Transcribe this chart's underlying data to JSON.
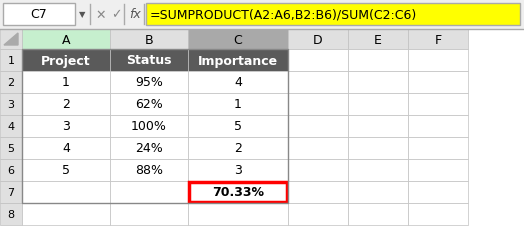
{
  "cell_ref": "C7",
  "formula": "=SUMPRODUCT(A2:A6,B2:B6)/SUM(C2:C6)",
  "col_headers": [
    "A",
    "B",
    "C",
    "D",
    "E",
    "F"
  ],
  "row_headers": [
    "1",
    "2",
    "3",
    "4",
    "5",
    "6",
    "7",
    "8"
  ],
  "table_headers": [
    "Project",
    "Status",
    "Importance"
  ],
  "data_rows": [
    [
      "1",
      "95%",
      "4"
    ],
    [
      "2",
      "62%",
      "1"
    ],
    [
      "3",
      "100%",
      "5"
    ],
    [
      "4",
      "24%",
      "2"
    ],
    [
      "5",
      "88%",
      "3"
    ]
  ],
  "result_value": "70.33%",
  "header_bg": "#5a5a5a",
  "header_fg": "#ffffff",
  "col_a_header_bg": "#c6efce",
  "col_c_header_bg": "#a9a9a9",
  "formula_bar_bg": "#ffff00",
  "result_border_color": "#ff0000",
  "grid_color": "#c0c0c0",
  "bg_color": "#ffffff",
  "toolbar_bg": "#efefef",
  "col_header_bg": "#e0e0e0",
  "row_header_bg": "#e0e0e0"
}
